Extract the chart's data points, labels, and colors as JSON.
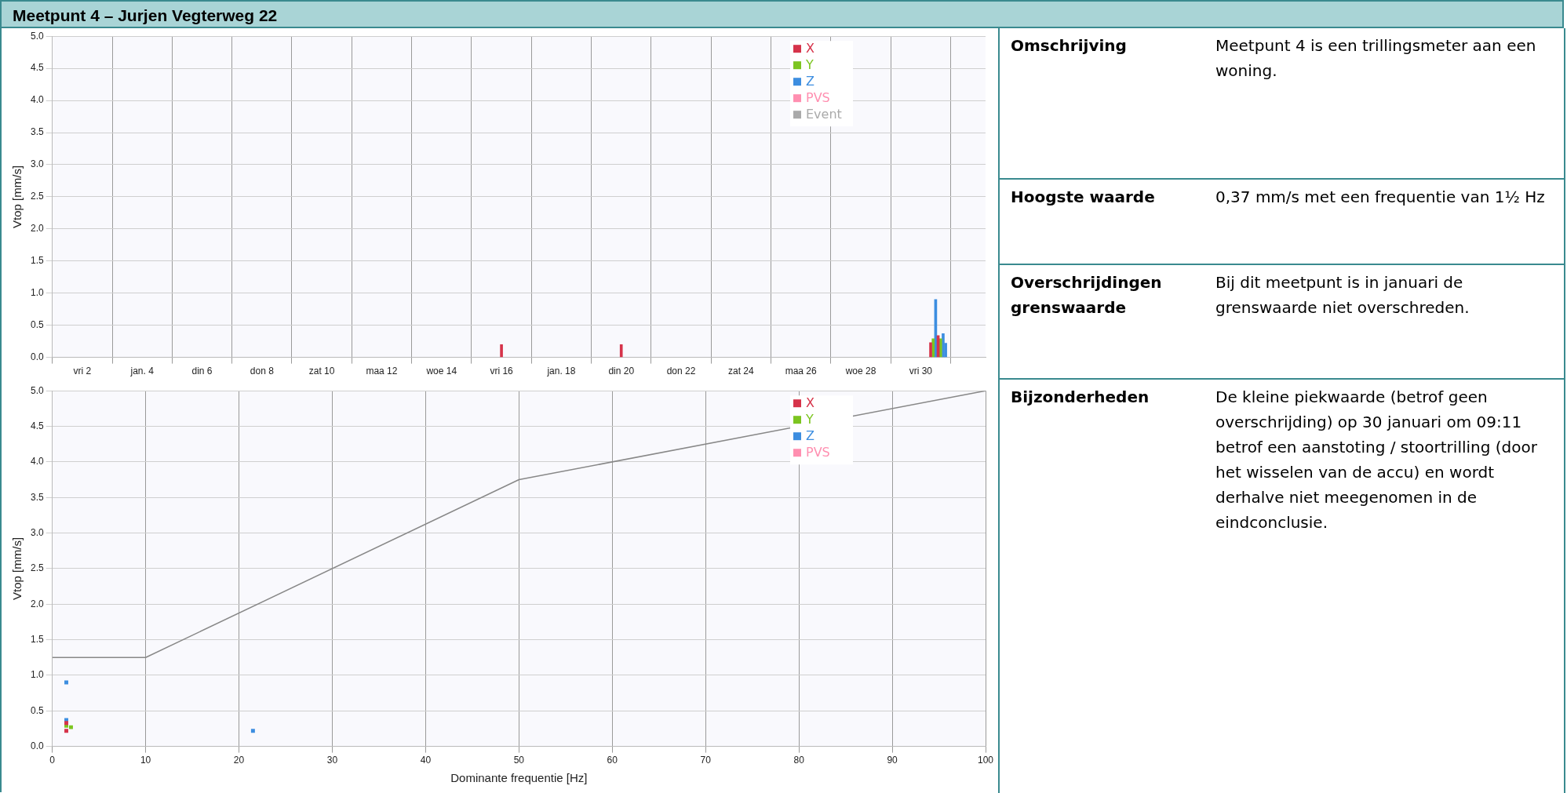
{
  "chart_data": [
    {
      "type": "bar",
      "title": "Meetpunt 4 – Jurjen Vegterweg 22",
      "ylabel": "Vtop [mm/s]",
      "series": [
        {
          "name": "X",
          "color": "#d6334a",
          "x": [
            "--01-16",
            "--01-20",
            "--01-30T08:00",
            "--01-30T14:00"
          ],
          "values": [
            0.2,
            0.2,
            0.23,
            0.34
          ]
        },
        {
          "name": "Y",
          "color": "#7cc520",
          "x": [
            "--01-30T10:00",
            "--01-30T16:00"
          ],
          "values": [
            0.29,
            0.29
          ]
        },
        {
          "name": "Z",
          "color": "#3d8ee0",
          "x": [
            "--01-30T12:00",
            "--01-30T18:00",
            "--01-30T20:00"
          ],
          "values": [
            0.9,
            0.37,
            0.22
          ]
        },
        {
          "name": "PVS",
          "color": "#ff8fb0"
        },
        {
          "name": "Event",
          "color": "#aaaaaa"
        }
      ],
      "xlim": [
        "--01-01",
        "--02-01T04:00"
      ],
      "xticks": [
        {
          "value": "--01-02",
          "label": "vri 2"
        },
        {
          "value": "--01-04",
          "label": "jan. 4"
        },
        {
          "value": "--01-06",
          "label": "din 6"
        },
        {
          "value": "--01-08",
          "label": "don 8"
        },
        {
          "value": "--01-10",
          "label": "zat 10"
        },
        {
          "value": "--01-12",
          "label": "maa 12"
        },
        {
          "value": "--01-14",
          "label": "woe 14"
        },
        {
          "value": "--01-16",
          "label": "vri 16"
        },
        {
          "value": "--01-18",
          "label": "jan. 18"
        },
        {
          "value": "--01-20",
          "label": "din 20"
        },
        {
          "value": "--01-22",
          "label": "don 22"
        },
        {
          "value": "--01-24",
          "label": "zat 24"
        },
        {
          "value": "--01-26",
          "label": "maa 26"
        },
        {
          "value": "--01-28",
          "label": "woe 28"
        },
        {
          "value": "--01-30",
          "label": "vri 30"
        }
      ],
      "ylim": [
        0,
        5
      ],
      "yticks": [
        {
          "value": 0,
          "label": "0.0"
        },
        0.5,
        {
          "value": 1,
          "label": "1.0"
        },
        1.5,
        {
          "value": 2,
          "label": "2.0"
        },
        2.5,
        {
          "value": 3,
          "label": "3.0"
        },
        3.5,
        {
          "value": 4,
          "label": "4.0"
        },
        4.5,
        {
          "value": 5,
          "label": "5.0"
        }
      ],
      "grid": true,
      "legend": "top right"
    },
    {
      "type": "scatter",
      "xlabel": "Dominante frequentie [Hz]",
      "ylabel": "Vtop [mm/s]",
      "marker": "square",
      "series": [
        {
          "name": "X",
          "color": "#d6334a",
          "x": [
            1.5,
            1.5
          ],
          "values": [
            0.33,
            0.22
          ]
        },
        {
          "name": "Y",
          "color": "#7cc520",
          "x": [
            1.5,
            2
          ],
          "values": [
            0.29,
            0.27
          ]
        },
        {
          "name": "Z",
          "color": "#3d8ee0",
          "x": [
            1.5,
            1.5,
            21.5
          ],
          "values": [
            0.9,
            0.37,
            0.22
          ]
        },
        {
          "name": "PVS",
          "color": "#ff8fb0"
        },
        {
          "type": "line",
          "color": "#888888",
          "marker": "none",
          "x": [
            0,
            10,
            50,
            100
          ],
          "values": [
            1.25,
            1.25,
            3.75,
            5
          ]
        }
      ],
      "xlim": [
        0,
        100
      ],
      "xticks": [
        0,
        10,
        20,
        30,
        40,
        50,
        60,
        70,
        80,
        90,
        100
      ],
      "ylim": [
        0,
        5
      ],
      "yticks": [
        {
          "value": 0,
          "label": "0.0"
        },
        0.5,
        {
          "value": 1,
          "label": "1.0"
        },
        1.5,
        {
          "value": 2,
          "label": "2.0"
        },
        2.5,
        {
          "value": 3,
          "label": "3.0"
        },
        3.5,
        {
          "value": 4,
          "label": "4.0"
        },
        4.5,
        {
          "value": 5,
          "label": "5.0"
        }
      ],
      "grid": true,
      "legend": "top right"
    },
    {
      "type": "other",
      "annotations": [
        "Omschrijving",
        "Meetpunt 4 is een trillingsmeter aan een woning.",
        "Hoogste waarde",
        "0,37 mm/s met een frequentie van 1½ Hz",
        "Overschrijdingen grenswaarde",
        "Bij dit meetpunt is in januari de grenswaarde niet overschreden.",
        "Bijzonderheden",
        "De kleine piekwaarde (betrof geen overschrijding) op 30 januari om 09:11 betrof een aanstoting / stoortrilling (door het wisselen van de accu) en wordt derhalve niet meegenomen in de eindconclusie."
      ]
    }
  ]
}
